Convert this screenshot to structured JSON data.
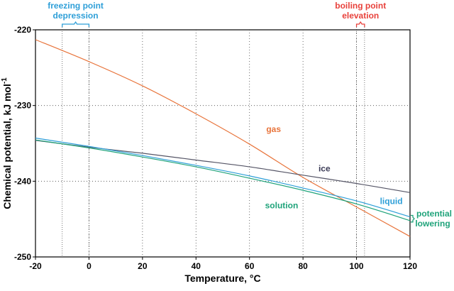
{
  "chart_data": {
    "type": "line",
    "title": "",
    "xlabel": "Temperature, °C",
    "ylabel": "Chemical potential, kJ mol",
    "ylabel_superscript": "-1",
    "xlim": [
      -20,
      120
    ],
    "ylim": [
      -250,
      -220
    ],
    "x_ticks": [
      -20,
      0,
      20,
      40,
      60,
      80,
      100,
      120
    ],
    "y_ticks": [
      -250,
      -240,
      -230,
      -220
    ],
    "x_tick_labels": [
      "-20",
      "0",
      "20",
      "40",
      "60",
      "80",
      "100",
      "120"
    ],
    "y_tick_labels": [
      "-250",
      "-240",
      "-230",
      "-220"
    ],
    "grid": "dotted",
    "legend": "none",
    "series": [
      {
        "name": "gas",
        "color": "#E8743B",
        "x": [
          -20,
          0,
          20,
          40,
          60,
          80,
          100,
          120
        ],
        "y": [
          -221.3,
          -224.2,
          -227.4,
          -231.1,
          -235.1,
          -239.5,
          -243.4,
          -247.3
        ]
      },
      {
        "name": "ice",
        "color": "#555566",
        "x": [
          -20,
          0,
          20,
          40,
          60,
          80,
          100,
          120
        ],
        "y": [
          -234.6,
          -235.5,
          -236.3,
          -237.2,
          -238.1,
          -239.2,
          -240.3,
          -241.5
        ]
      },
      {
        "name": "liquid",
        "color": "#2E9FD8",
        "x": [
          -20,
          0,
          20,
          40,
          60,
          80,
          100,
          120
        ],
        "y": [
          -234.3,
          -235.4,
          -236.6,
          -237.9,
          -239.3,
          -240.9,
          -242.6,
          -244.7
        ]
      },
      {
        "name": "solution",
        "color": "#1FA37A",
        "x": [
          -20,
          0,
          20,
          40,
          60,
          80,
          100,
          120
        ],
        "y": [
          -234.55,
          -235.6,
          -236.8,
          -238.1,
          -239.6,
          -241.2,
          -243.0,
          -245.2
        ]
      }
    ],
    "series_labels": [
      {
        "text": "gas",
        "color": "#E8743B",
        "x": 69,
        "y": -233.5
      },
      {
        "text": "ice",
        "color": "#3A3A55",
        "x": 88,
        "y": -238.7
      },
      {
        "text": "liquid",
        "color": "#2E9FD8",
        "x": 113,
        "y": -243.0
      },
      {
        "text": "solution",
        "color": "#1FA37A",
        "x": 72,
        "y": -243.6
      }
    ],
    "reference_lines_x": [
      -10,
      0,
      100,
      103
    ],
    "annotations": [
      {
        "name": "freezing-point-depression",
        "lines": [
          "freezing point",
          "depression"
        ],
        "color": "#2E9FD8",
        "x_from": -10,
        "x_to": 0
      },
      {
        "name": "boiling-point-elevation",
        "lines": [
          "boiling point",
          "elevation"
        ],
        "color": "#E8413B",
        "x_from": 100,
        "x_to": 103
      },
      {
        "name": "potential-lowering",
        "lines": [
          "potential",
          "lowering"
        ],
        "color": "#1FA37A",
        "at_x": 120,
        "y_from": -244.7,
        "y_to": -245.2
      }
    ]
  }
}
